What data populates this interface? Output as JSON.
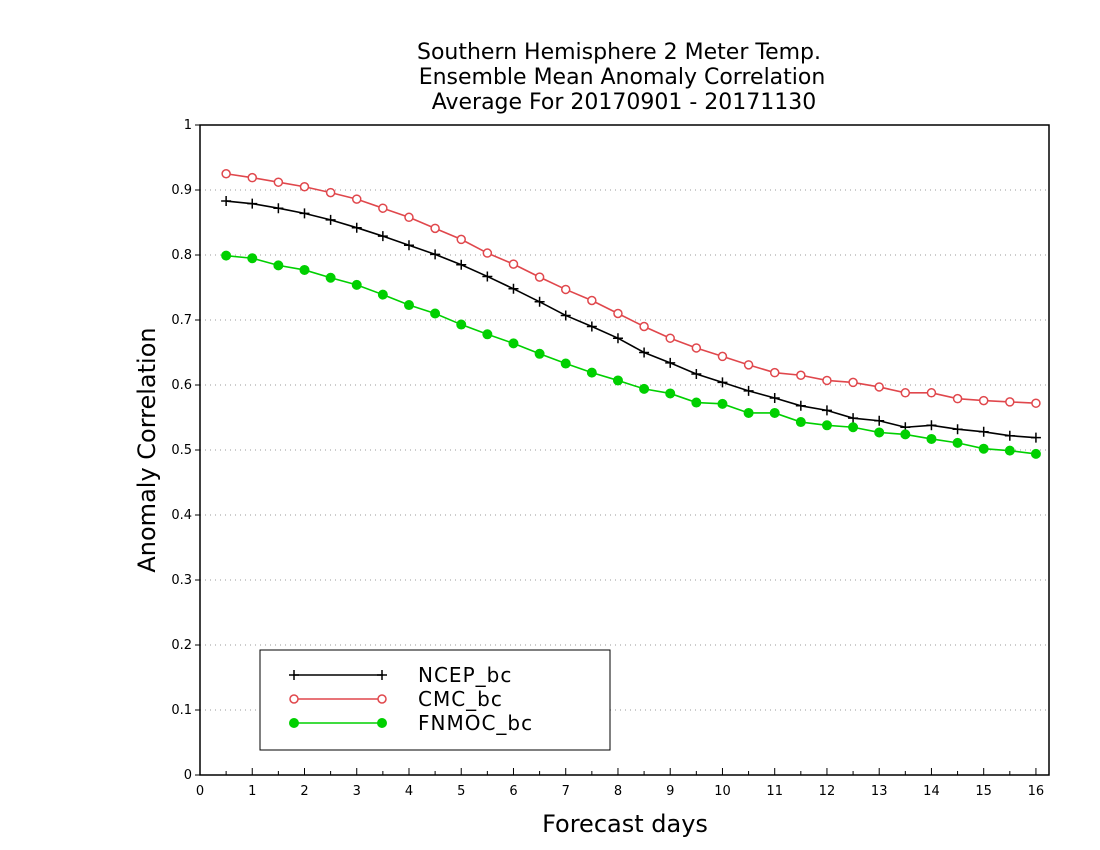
{
  "chart_data": {
    "type": "line",
    "title": [
      "Southern Hemisphere 2 Meter Temp.",
      "Ensemble Mean Anomaly Correlation",
      "Average For 20170901 - 20171130"
    ],
    "xlabel": "Forecast days",
    "ylabel": "Anomaly Correlation",
    "xlim": [
      0,
      16.25
    ],
    "ylim": [
      0,
      1
    ],
    "xticks": [
      "0",
      "1",
      "2",
      "3",
      "4",
      "5",
      "6",
      "7",
      "8",
      "9",
      "10",
      "11",
      "12",
      "13",
      "14",
      "15",
      "16"
    ],
    "yticks": [
      "0",
      "0.1",
      "0.2",
      "0.3",
      "0.4",
      "0.5",
      "0.6",
      "0.7",
      "0.8",
      "0.9",
      "1"
    ],
    "grid": "horizontal-dotted",
    "legend_position": "lower-left",
    "x": [
      0.5,
      1,
      1.5,
      2,
      2.5,
      3,
      3.5,
      4,
      4.5,
      5,
      5.5,
      6,
      6.5,
      7,
      7.5,
      8,
      8.5,
      9,
      9.5,
      10,
      10.5,
      11,
      11.5,
      12,
      12.5,
      13,
      13.5,
      14,
      14.5,
      15,
      15.5,
      16
    ],
    "series": [
      {
        "name": "NCEP_bc",
        "color": "#000000",
        "marker": "plus",
        "values": [
          0.883,
          0.879,
          0.872,
          0.864,
          0.854,
          0.842,
          0.829,
          0.815,
          0.801,
          0.785,
          0.767,
          0.748,
          0.728,
          0.707,
          0.69,
          0.672,
          0.65,
          0.634,
          0.617,
          0.604,
          0.591,
          0.58,
          0.568,
          0.561,
          0.549,
          0.545,
          0.535,
          0.538,
          0.532,
          0.528,
          0.522,
          0.519
        ]
      },
      {
        "name": "CMC_bc",
        "color": "#e0474c",
        "marker": "open-circle",
        "values": [
          0.925,
          0.919,
          0.912,
          0.905,
          0.896,
          0.886,
          0.872,
          0.858,
          0.841,
          0.824,
          0.803,
          0.786,
          0.766,
          0.747,
          0.73,
          0.71,
          0.69,
          0.672,
          0.657,
          0.644,
          0.631,
          0.619,
          0.615,
          0.607,
          0.604,
          0.597,
          0.588,
          0.588,
          0.579,
          0.576,
          0.574,
          0.572
        ]
      },
      {
        "name": "FNMOC_bc",
        "color": "#00d000",
        "marker": "filled-circle",
        "values": [
          0.799,
          0.795,
          0.784,
          0.777,
          0.765,
          0.754,
          0.739,
          0.723,
          0.71,
          0.693,
          0.678,
          0.664,
          0.648,
          0.633,
          0.619,
          0.607,
          0.594,
          0.587,
          0.573,
          0.571,
          0.557,
          0.557,
          0.543,
          0.538,
          0.535,
          0.527,
          0.524,
          0.517,
          0.511,
          0.502,
          0.499,
          0.494
        ]
      }
    ]
  }
}
